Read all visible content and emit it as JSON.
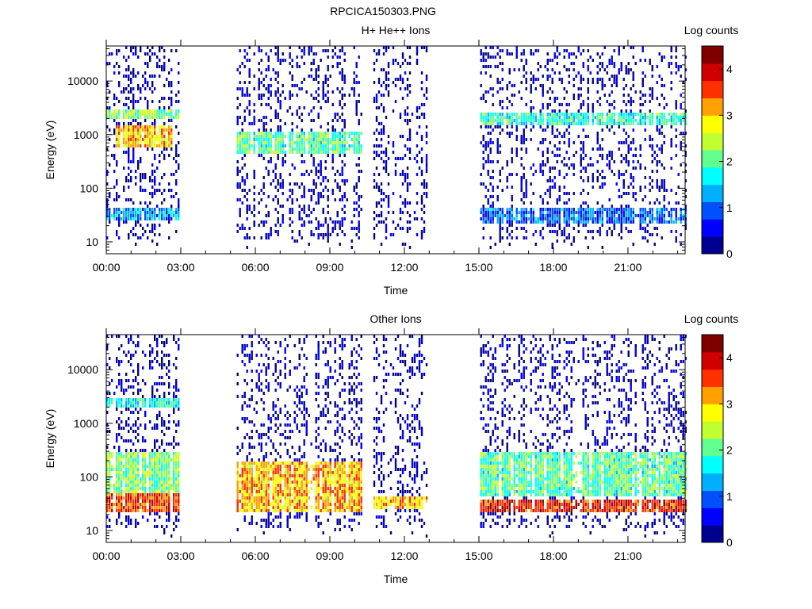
{
  "figure_title": "RPCICA150303.PNG",
  "colors": {
    "colormap": [
      "#000090",
      "#0000ff",
      "#0050ff",
      "#00b0ff",
      "#00ffff",
      "#60ff90",
      "#c0ff30",
      "#ffff00",
      "#ffa000",
      "#ff3000",
      "#d00000",
      "#800000"
    ]
  },
  "chart_data": [
    {
      "type": "heatmap",
      "title": "H+ He++ Ions",
      "xlabel": "Time",
      "ylabel": "Energy (eV)",
      "y_scale": "log",
      "ylim": [
        6,
        45000
      ],
      "xlim_hours": [
        0,
        23.3
      ],
      "x_ticks": [
        "00:00",
        "03:00",
        "06:00",
        "09:00",
        "12:00",
        "15:00",
        "18:00",
        "21:00"
      ],
      "y_ticks": [
        "10",
        "100",
        "1000",
        "10000"
      ],
      "colorbar": {
        "label": "Log counts",
        "range": [
          0,
          4.5
        ],
        "ticks": [
          "0",
          "1",
          "2",
          "3",
          "4"
        ]
      },
      "data_intervals_hours": [
        [
          0.0,
          2.95
        ],
        [
          5.25,
          10.3
        ],
        [
          10.75,
          12.9
        ],
        [
          15.05,
          23.3
        ]
      ],
      "bands": [
        {
          "t0": 0.0,
          "t1": 2.95,
          "e0": 2000,
          "e1": 3200,
          "level": 2.2
        },
        {
          "t0": 0.3,
          "t1": 2.6,
          "e0": 600,
          "e1": 1700,
          "level": 3.0
        },
        {
          "t0": 0.0,
          "t1": 2.95,
          "e0": 28,
          "e1": 45,
          "level": 1.2
        },
        {
          "t0": 5.25,
          "t1": 10.3,
          "e0": 500,
          "e1": 1300,
          "level": 2.0
        },
        {
          "t0": 15.05,
          "t1": 23.3,
          "e0": 1600,
          "e1": 2800,
          "level": 1.8
        },
        {
          "t0": 15.05,
          "t1": 23.3,
          "e0": 25,
          "e1": 45,
          "level": 1.0
        }
      ]
    },
    {
      "type": "heatmap",
      "title": "Other Ions",
      "xlabel": "Time",
      "ylabel": "Energy (eV)",
      "y_scale": "log",
      "ylim": [
        6,
        45000
      ],
      "xlim_hours": [
        0,
        23.3
      ],
      "x_ticks": [
        "00:00",
        "03:00",
        "06:00",
        "09:00",
        "12:00",
        "15:00",
        "18:00",
        "21:00"
      ],
      "y_ticks": [
        "10",
        "100",
        "1000",
        "10000"
      ],
      "colorbar": {
        "label": "Log counts",
        "range": [
          0,
          4.5
        ],
        "ticks": [
          "0",
          "1",
          "2",
          "3",
          "4"
        ]
      },
      "data_intervals_hours": [
        [
          0.0,
          2.95
        ],
        [
          5.25,
          10.3
        ],
        [
          10.75,
          12.9
        ],
        [
          15.05,
          23.3
        ]
      ],
      "bands": [
        {
          "t0": 0.0,
          "t1": 2.95,
          "e0": 2000,
          "e1": 3200,
          "level": 1.7
        },
        {
          "t0": 0.0,
          "t1": 2.95,
          "e0": 25,
          "e1": 50,
          "level": 3.6
        },
        {
          "t0": 0.0,
          "t1": 2.95,
          "e0": 50,
          "e1": 300,
          "level": 2.2
        },
        {
          "t0": 5.25,
          "t1": 10.3,
          "e0": 25,
          "e1": 200,
          "level": 3.1
        },
        {
          "t0": 10.75,
          "t1": 12.9,
          "e0": 28,
          "e1": 45,
          "level": 3.0
        },
        {
          "t0": 15.05,
          "t1": 23.3,
          "e0": 25,
          "e1": 42,
          "level": 3.8
        },
        {
          "t0": 15.05,
          "t1": 23.3,
          "e0": 45,
          "e1": 300,
          "level": 2.0
        }
      ]
    }
  ]
}
